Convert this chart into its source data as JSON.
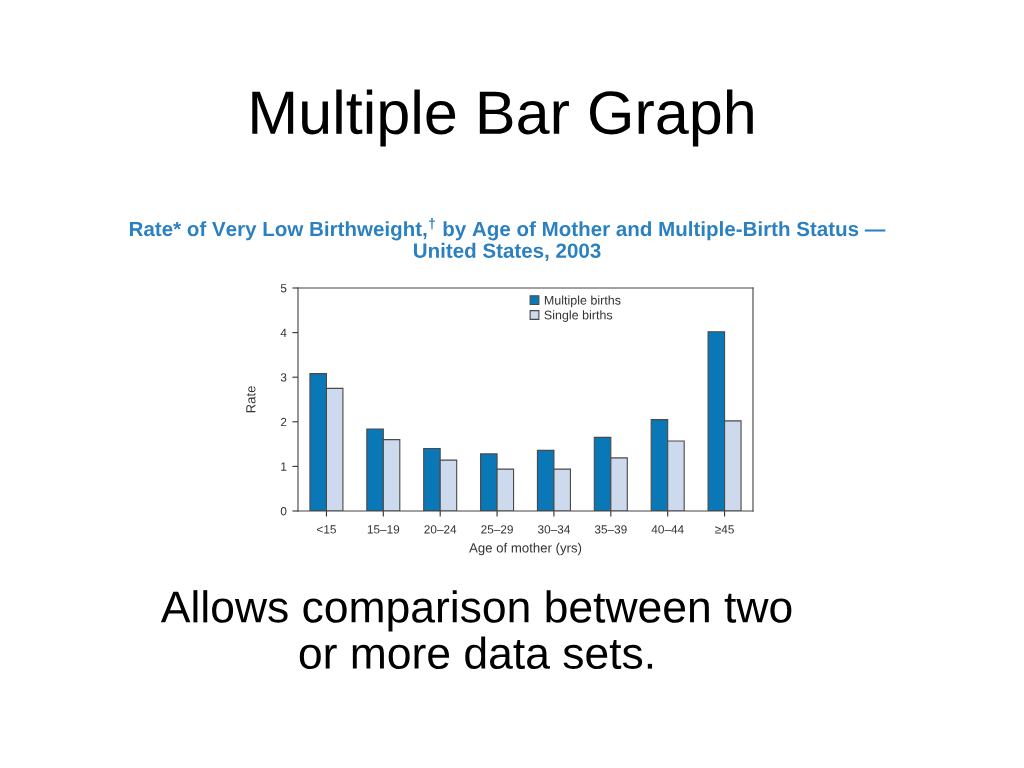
{
  "chart_data": {
    "type": "bar",
    "title": "Multiple Bar Graph",
    "subtitle": "Rate* of Very Low Birthweight,$^{†}$ by Age of Mother and Multiple-Birth Status —\nUnited States, 2003",
    "xlabel": "Age of mother (yrs)",
    "ylabel": "Rate",
    "categories": [
      "<15",
      "15–19",
      "20–24",
      "25–29",
      "30–34",
      "35–39",
      "40–44",
      "≥45"
    ],
    "series": [
      {
        "name": "Multiple births",
        "color": "#0a78b6",
        "values": [
          3.08,
          1.84,
          1.4,
          1.28,
          1.36,
          1.65,
          2.05,
          4.02
        ]
      },
      {
        "name": "Single births",
        "color": "#cdd9ec",
        "values": [
          2.75,
          1.6,
          1.14,
          0.94,
          0.94,
          1.19,
          1.57,
          2.02
        ]
      }
    ],
    "ylim": [
      0,
      5
    ],
    "yticks": [
      0,
      1,
      2,
      3,
      4,
      5
    ],
    "legend": "top",
    "annotations": [
      "Allows comparison between two\nor more data sets."
    ]
  }
}
